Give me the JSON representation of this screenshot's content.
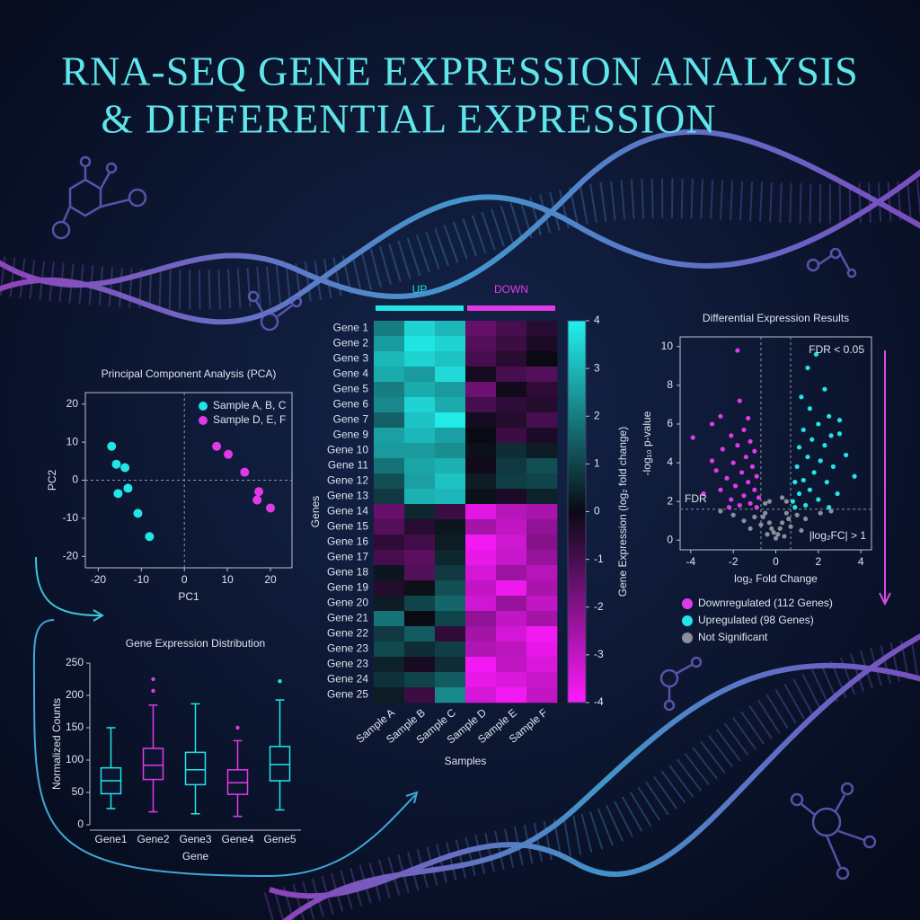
{
  "title": [
    "RNA-SEQ GENE EXPRESSION ANALYSIS",
    "& DIFFERENTIAL EXPRESSION"
  ],
  "chart_data": [
    {
      "type": "scatter",
      "title": "Principal Component Analysis (PCA)",
      "xlabel": "PC1",
      "ylabel": "PC2",
      "xlim": [
        -23,
        25
      ],
      "ylim": [
        -23,
        23
      ],
      "xticks": [
        -20,
        -10,
        0,
        10,
        20
      ],
      "yticks": [
        -20,
        -10,
        0,
        10,
        20
      ],
      "zero_lines": true,
      "legend": "upper right",
      "series": [
        {
          "name": "Sample A, B, C",
          "color": "#22e5e8",
          "x": [
            -16.9,
            -15.8,
            -13.8,
            -13.1,
            -15.4,
            -10.8,
            -8.1
          ],
          "y": [
            8.9,
            4.2,
            3.3,
            -2.1,
            -3.5,
            -8.7,
            -14.8
          ]
        },
        {
          "name": "Sample D, E, F",
          "color": "#e03ae8",
          "x": [
            7.5,
            10.2,
            14,
            17.3,
            16.9,
            20
          ],
          "y": [
            8.9,
            6.8,
            2.1,
            -3,
            -5.2,
            -7.3
          ]
        }
      ]
    },
    {
      "type": "box",
      "title": "Gene Expression Distribution",
      "xlabel": "Gene",
      "ylabel": "Normalized Counts",
      "categories": [
        "Gene1",
        "Gene2",
        "Gene3",
        "Gene4",
        "Gene5"
      ],
      "colors": [
        "#22e5e8",
        "#e03ae8",
        "#22e5e8",
        "#e03ae8",
        "#22e5e8"
      ],
      "ylim": [
        0,
        250
      ],
      "yticks": [
        0,
        50,
        100,
        150,
        200,
        250
      ],
      "boxes": [
        {
          "whisker_low": 25,
          "q1": 48,
          "median": 68,
          "q3": 88,
          "whisker_high": 150,
          "outliers": []
        },
        {
          "whisker_low": 20,
          "q1": 70,
          "median": 92,
          "q3": 118,
          "whisker_high": 185,
          "outliers": [
            207,
            225
          ]
        },
        {
          "whisker_low": 17,
          "q1": 62,
          "median": 85,
          "q3": 112,
          "whisker_high": 187,
          "outliers": []
        },
        {
          "whisker_low": 13,
          "q1": 47,
          "median": 65,
          "q3": 85,
          "whisker_high": 130,
          "outliers": [
            150
          ]
        },
        {
          "whisker_low": 23,
          "q1": 68,
          "median": 93,
          "q3": 121,
          "whisker_high": 193,
          "outliers": [
            222
          ]
        }
      ]
    },
    {
      "type": "heatmap",
      "xlabel": "Samples",
      "ylabel": "Genes",
      "rows": [
        "Gene 1",
        "Gene 2",
        "Gene 3",
        "Gene 4",
        "Gene 5",
        "Gene 6",
        "Gene 7",
        "Gene 9",
        "Gene 10",
        "Gene 11",
        "Gene 12",
        "Gene 13",
        "Gene 14",
        "Gene 15",
        "Gene 16",
        "Gene 17",
        "Gene 18",
        "Gene 19",
        "Gene 20",
        "Gene 21",
        "Gene 22",
        "Gene 23",
        "Gene 23",
        "Gene 24",
        "Gene 25"
      ],
      "columns": [
        "Sample A",
        "Sample B",
        "Sample C",
        "Sample D",
        "Sample E",
        "Sample F"
      ],
      "groups": [
        {
          "label": "UP",
          "color": "#22e5e8"
        },
        {
          "label": "DOWN",
          "color": "#e03ae8"
        }
      ],
      "colors": {
        "low": "#ff1aff",
        "mid": "#0a0a14",
        "high": "#22f0ee"
      },
      "zlim": [
        -4,
        4
      ],
      "zticks": [
        -4,
        -3,
        -2,
        -1,
        0,
        1,
        2,
        3,
        4
      ],
      "zlabel": "Gene Expression (log₂ fold change)",
      "values": [
        [
          2.0,
          3.5,
          3.0,
          -1.5,
          -1.0,
          -0.5
        ],
        [
          2.5,
          3.8,
          3.5,
          -1.2,
          -0.8,
          -0.3
        ],
        [
          3.0,
          3.5,
          3.2,
          -1.0,
          -0.5,
          0.0
        ],
        [
          2.8,
          2.5,
          3.6,
          -0.2,
          -1.0,
          -1.2
        ],
        [
          2.0,
          2.8,
          2.5,
          -1.6,
          -0.1,
          -0.6
        ],
        [
          2.2,
          3.5,
          2.8,
          -1.0,
          -0.6,
          -0.4
        ],
        [
          1.5,
          3.2,
          3.9,
          -0.2,
          -0.4,
          -1.0
        ],
        [
          2.6,
          3.0,
          2.6,
          0.0,
          -0.8,
          -0.3
        ],
        [
          2.5,
          2.5,
          2.3,
          0.1,
          0.6,
          0.3
        ],
        [
          1.8,
          2.7,
          2.9,
          -0.1,
          0.8,
          1.2
        ],
        [
          1.2,
          2.6,
          3.2,
          0.3,
          0.9,
          1.0
        ],
        [
          0.8,
          2.9,
          3.0,
          0.1,
          -0.3,
          0.4
        ],
        [
          -1.5,
          0.5,
          -0.8,
          -3.5,
          -2.8,
          -2.6
        ],
        [
          -1.2,
          -0.5,
          0.2,
          -2.5,
          -3.0,
          -2.2
        ],
        [
          -0.6,
          -0.9,
          0.3,
          -3.8,
          -3.2,
          -2.0
        ],
        [
          -1.0,
          -1.3,
          0.5,
          -3.6,
          -3.1,
          -2.3
        ],
        [
          0.2,
          -1.2,
          0.8,
          -3.3,
          -2.4,
          -2.8
        ],
        [
          -0.4,
          0.1,
          1.2,
          -3.0,
          -3.7,
          -2.6
        ],
        [
          0.3,
          1.0,
          1.6,
          -3.2,
          -2.3,
          -3.0
        ],
        [
          1.8,
          0.0,
          1.0,
          -2.2,
          -3.0,
          -2.5
        ],
        [
          0.8,
          1.4,
          -0.6,
          -2.5,
          -3.3,
          -3.8
        ],
        [
          1.1,
          0.6,
          0.9,
          -2.7,
          -2.9,
          -3.6
        ],
        [
          0.4,
          -0.2,
          0.6,
          -3.8,
          -3.0,
          -3.4
        ],
        [
          0.7,
          1.0,
          1.4,
          -3.6,
          -3.4,
          -3.1
        ],
        [
          0.3,
          -0.8,
          2.2,
          -3.3,
          -3.8,
          -3.0
        ]
      ]
    },
    {
      "type": "scatter",
      "title": "Differential Expression Results",
      "xlabel": "log₂ Fold Change",
      "ylabel": "-log₁₀ p-value",
      "xlim": [
        -4.5,
        4.5
      ],
      "ylim": [
        -0.5,
        10.5
      ],
      "xticks": [
        -4,
        -2,
        0,
        2,
        4
      ],
      "yticks": [
        0,
        2,
        4,
        6,
        8,
        10
      ],
      "vlines": [
        -0.7,
        0.7
      ],
      "hline": 1.6,
      "legend": "below",
      "annotations": [
        "FDR < 0.05",
        "FDR",
        "|log₂FC| > 1"
      ],
      "series": [
        {
          "name": "Downregulated (112 Genes)",
          "color": "#e03ae8",
          "x": [
            -1.8,
            -2.6,
            -3.0,
            -1.7,
            -1.3,
            -1.5,
            -2.1,
            -1.2,
            -1.8,
            -2.5,
            -3.0,
            -3.9,
            -1.0,
            -1.4,
            -2.0,
            -2.8,
            -1.1,
            -1.6,
            -2.3,
            -0.9,
            -1.3,
            -1.9,
            -2.6,
            -1.0,
            -1.5,
            -2.1,
            -0.8,
            -1.2,
            -1.7,
            -3.4,
            -2.2,
            -0.9
          ],
          "y": [
            9.8,
            6.4,
            6.0,
            7.2,
            6.3,
            5.7,
            5.4,
            5.1,
            4.9,
            4.7,
            4.1,
            5.3,
            4.6,
            4.3,
            4.0,
            3.6,
            3.8,
            3.5,
            3.2,
            3.3,
            3.0,
            2.8,
            2.6,
            2.6,
            2.3,
            2.1,
            2.2,
            1.9,
            1.8,
            2.4,
            1.7,
            1.7
          ]
        },
        {
          "name": "Upregulated (98 Genes)",
          "color": "#22e5e8",
          "x": [
            1.5,
            1.9,
            2.3,
            1.2,
            1.6,
            2.5,
            2.0,
            1.3,
            3.0,
            1.7,
            2.3,
            1.1,
            3.3,
            1.5,
            2.1,
            2.7,
            1.0,
            3.7,
            1.8,
            1.3,
            2.4,
            0.9,
            1.6,
            2.9,
            1.1,
            2.0,
            0.8,
            1.4,
            2.5,
            0.9,
            3.0,
            2.6
          ],
          "y": [
            8.9,
            9.6,
            7.8,
            7.4,
            6.8,
            6.4,
            6.0,
            5.7,
            5.5,
            5.2,
            4.9,
            4.8,
            4.4,
            4.3,
            4.1,
            3.8,
            3.8,
            3.3,
            3.5,
            3.1,
            3.0,
            3.0,
            2.6,
            2.4,
            2.4,
            2.1,
            2.0,
            1.8,
            1.7,
            1.7,
            6.2,
            5.4
          ]
        },
        {
          "name": "Not Significant",
          "color": "#8a8f99",
          "x": [
            -0.5,
            0.5,
            -0.3,
            0.3,
            -0.1,
            0.1,
            0,
            -0.6,
            0.6,
            -0.2,
            0.2,
            -1.0,
            1.0,
            -1.5,
            1.4,
            -2.0,
            2.1,
            -0.4,
            0.4,
            -0.7,
            0.7,
            -2.6,
            2.6,
            -1.2,
            1.2,
            -0.3,
            0.3,
            -0.5,
            0.5
          ],
          "y": [
            1.4,
            1.4,
            0.9,
            0.9,
            0.4,
            0.3,
            0.1,
            1.2,
            1.1,
            0.6,
            0.6,
            1.2,
            1.3,
            1.0,
            1.1,
            1.3,
            1.4,
            0.3,
            0.2,
            0.8,
            0.7,
            1.5,
            1.5,
            0.6,
            0.5,
            2.0,
            2.2,
            1.9,
            2.0
          ]
        }
      ]
    }
  ]
}
